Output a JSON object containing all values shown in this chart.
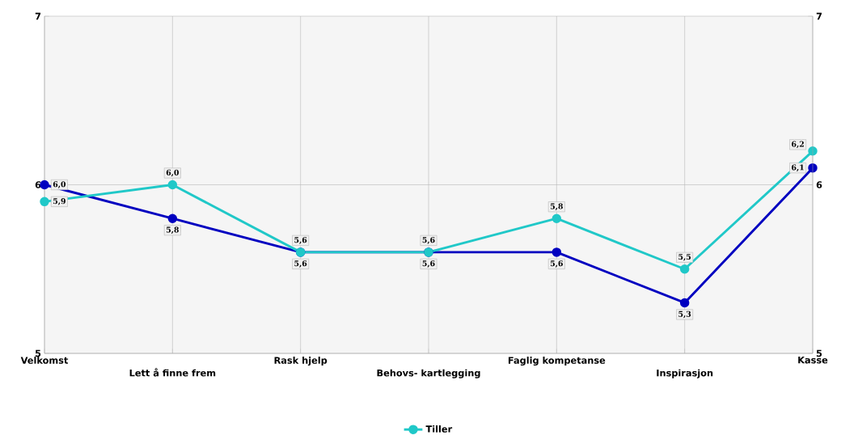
{
  "chart_data": {
    "type": "line",
    "categories": [
      "Velkomst",
      "Lett å finne frem",
      "Rask hjelp",
      "Behovs- kartlegging",
      "Faglig kompetanse",
      "Inspirasjon",
      "Kasse"
    ],
    "series": [
      {
        "color": "#0000c0",
        "values": [
          6.0,
          5.8,
          5.6,
          5.6,
          5.6,
          5.3,
          6.1
        ],
        "value_labels": [
          "6,0",
          "5,8",
          "5,6",
          "5,6",
          "5,6",
          "5,3",
          "6,1"
        ]
      },
      {
        "name": "Tiller",
        "color": "#20c8c8",
        "values": [
          5.9,
          6.0,
          5.6,
          5.6,
          5.8,
          5.5,
          6.2
        ],
        "value_labels": [
          "5,9",
          "6,0",
          "5,6",
          "5,6",
          "5,8",
          "5,5",
          "6,2"
        ]
      }
    ],
    "ylim": [
      5,
      7
    ],
    "yticks": [
      5,
      6,
      7
    ],
    "y2lim": [
      5,
      7
    ],
    "y2ticks": [
      5,
      6,
      7
    ],
    "grid": true,
    "legend": "bottom",
    "marker": "circle",
    "line_style": "solid"
  }
}
